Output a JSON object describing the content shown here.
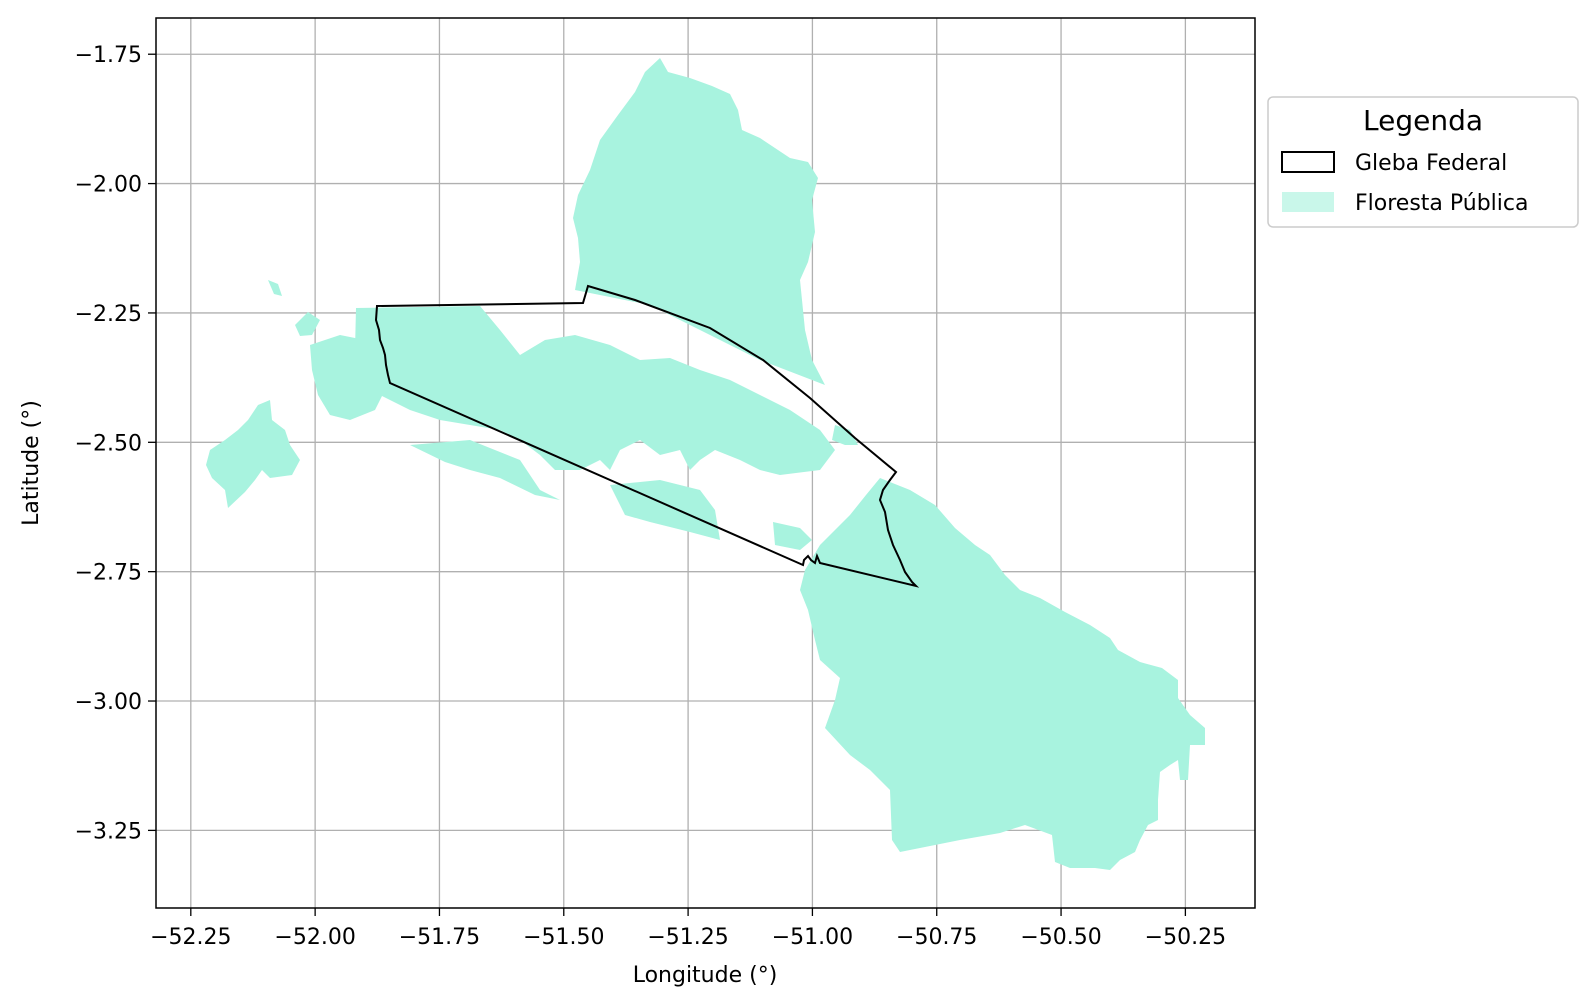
{
  "map": {
    "xlabel": "Longitude (°)",
    "ylabel": "Latitude (°)",
    "xlim": [
      -52.32,
      -50.11
    ],
    "ylim": [
      -3.4,
      -1.68
    ],
    "grid": true,
    "x_ticks": [
      -52.25,
      -52.0,
      -51.75,
      -51.5,
      -51.25,
      -51.0,
      -50.75,
      -50.5,
      -50.25
    ],
    "x_tick_labels": [
      "−52.25",
      "−52.00",
      "−51.75",
      "−51.50",
      "−51.25",
      "−51.00",
      "−50.75",
      "−50.50",
      "−50.25"
    ],
    "y_ticks": [
      -1.75,
      -2.0,
      -2.25,
      -2.5,
      -2.75,
      -3.0,
      -3.25
    ],
    "y_tick_labels": [
      "−1.75",
      "−2.00",
      "−2.25",
      "−2.50",
      "−2.75",
      "−3.00",
      "−3.25"
    ],
    "colors": {
      "forest": "#a8f3df",
      "boundary": "#000000",
      "grid": "#b0b0b0"
    }
  },
  "legend": {
    "title": "Legenda",
    "placement": "outside-right-top",
    "items": [
      {
        "label": "Gleba Federal",
        "swatch": "outline"
      },
      {
        "label": "Floresta Pública",
        "swatch": "fill"
      }
    ]
  }
}
